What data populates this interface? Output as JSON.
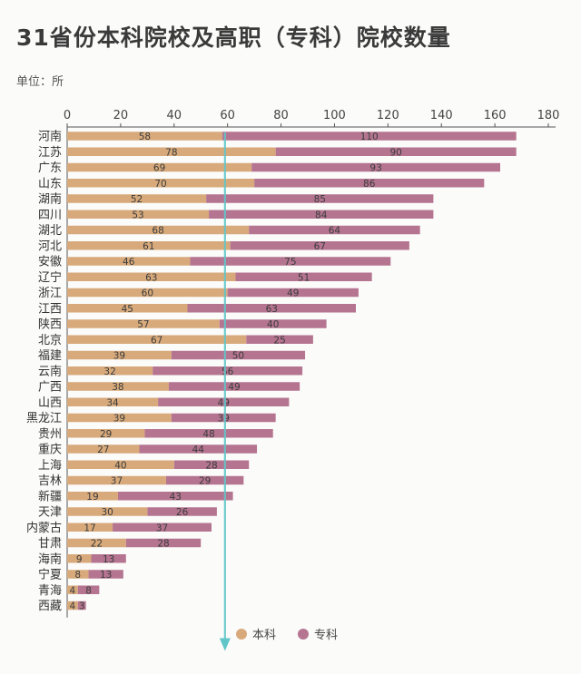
{
  "title": "31省份本科院校及高职（专科）院校数量",
  "unit": "单位：所",
  "colors": {
    "benke": "#d8aa7b",
    "zhuanke": "#b57590",
    "arrow": "#62c6c9",
    "axis": "#555555"
  },
  "chart_data": {
    "type": "bar",
    "orientation": "horizontal",
    "stacked": true,
    "title": "31省份本科院校及高职（专科）院校数量",
    "xlim": [
      0,
      180
    ],
    "xticks": [
      0,
      20,
      40,
      60,
      80,
      100,
      120,
      140,
      160,
      180
    ],
    "legend_position": "bottom",
    "grid": false,
    "categories": [
      "河南",
      "江苏",
      "广东",
      "山东",
      "湖南",
      "四川",
      "湖北",
      "河北",
      "安徽",
      "辽宁",
      "浙江",
      "江西",
      "陕西",
      "北京",
      "福建",
      "云南",
      "广西",
      "山西",
      "黑龙江",
      "贵州",
      "重庆",
      "上海",
      "吉林",
      "新疆",
      "天津",
      "内蒙古",
      "甘肃",
      "海南",
      "宁夏",
      "青海",
      "西藏"
    ],
    "series": [
      {
        "name": "本科",
        "values": [
          58,
          78,
          69,
          70,
          52,
          53,
          68,
          61,
          46,
          63,
          60,
          45,
          57,
          67,
          39,
          32,
          38,
          34,
          39,
          29,
          27,
          40,
          37,
          19,
          30,
          17,
          22,
          9,
          8,
          4,
          4
        ]
      },
      {
        "name": "专科",
        "values": [
          110,
          90,
          93,
          86,
          85,
          84,
          64,
          67,
          75,
          51,
          49,
          63,
          40,
          25,
          50,
          56,
          49,
          49,
          39,
          48,
          44,
          28,
          29,
          43,
          26,
          37,
          28,
          13,
          13,
          8,
          3
        ]
      }
    ]
  }
}
